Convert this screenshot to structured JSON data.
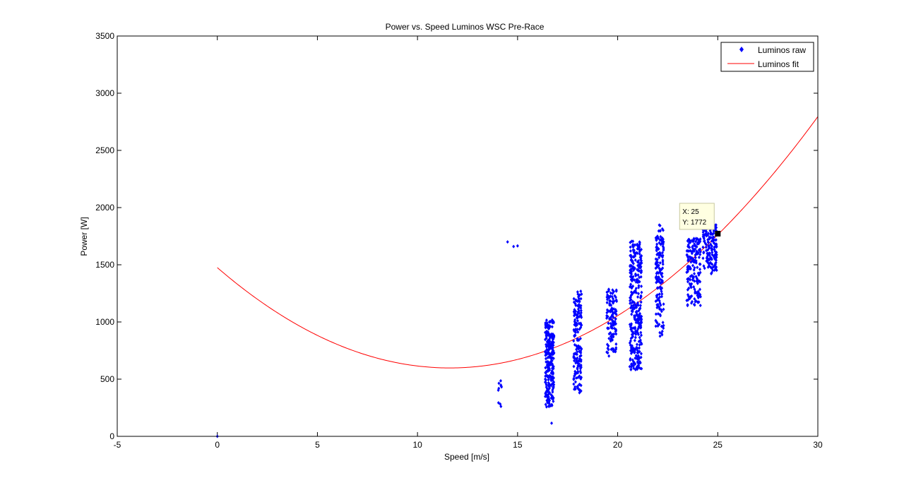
{
  "chart_data": {
    "type": "scatter",
    "title": "Power vs. Speed Luminos WSC Pre-Race",
    "xlabel": "Speed [m/s]",
    "ylabel": "Power [W]",
    "xlim": [
      -5,
      30
    ],
    "ylim": [
      0,
      3500
    ],
    "x_ticks": [
      -5,
      0,
      5,
      10,
      15,
      20,
      25,
      30
    ],
    "y_ticks": [
      0,
      500,
      1000,
      1500,
      2000,
      2500,
      3000,
      3500
    ],
    "grid": false,
    "legend_position": "top-right",
    "series": [
      {
        "name": "Luminos raw",
        "kind": "scatter",
        "marker": "diamond",
        "color": "#0000ff",
        "clusters": [
          {
            "x_center": 0.0,
            "x_spread": 0.0,
            "y_min": 0,
            "y_max": 0,
            "count": 1
          },
          {
            "x_center": 14.1,
            "x_spread": 0.1,
            "y_min": 220,
            "y_max": 520,
            "count": 10
          },
          {
            "x_center": 16.6,
            "x_spread": 0.22,
            "y_min": 250,
            "y_max": 1020,
            "count": 260
          },
          {
            "x_center": 16.7,
            "x_spread": 0.0,
            "y_min": 115,
            "y_max": 115,
            "count": 1
          },
          {
            "x_center": 18.0,
            "x_spread": 0.2,
            "y_min": 380,
            "y_max": 1270,
            "count": 170
          },
          {
            "x_center": 19.7,
            "x_spread": 0.25,
            "y_min": 700,
            "y_max": 1300,
            "count": 120
          },
          {
            "x_center": 20.9,
            "x_spread": 0.3,
            "y_min": 580,
            "y_max": 1710,
            "count": 320
          },
          {
            "x_center": 22.1,
            "x_spread": 0.2,
            "y_min": 850,
            "y_max": 1850,
            "count": 150
          },
          {
            "x_center": 23.8,
            "x_spread": 0.35,
            "y_min": 1140,
            "y_max": 1730,
            "count": 170
          },
          {
            "x_center": 24.6,
            "x_spread": 0.35,
            "y_min": 1420,
            "y_max": 1860,
            "count": 150
          }
        ],
        "points": [
          [
            14.5,
            1700
          ],
          [
            14.8,
            1660
          ],
          [
            15.0,
            1665
          ]
        ]
      },
      {
        "name": "Luminos fit",
        "kind": "line",
        "color": "#ff0000",
        "model": "quadratic",
        "coefficients": {
          "a": 6.5,
          "b": -151,
          "c": 1475
        },
        "x_range": [
          0,
          30
        ]
      }
    ],
    "datatip": {
      "x": 25,
      "y": 1772,
      "x_text": "X: 25",
      "y_text": "Y: 1772"
    }
  }
}
